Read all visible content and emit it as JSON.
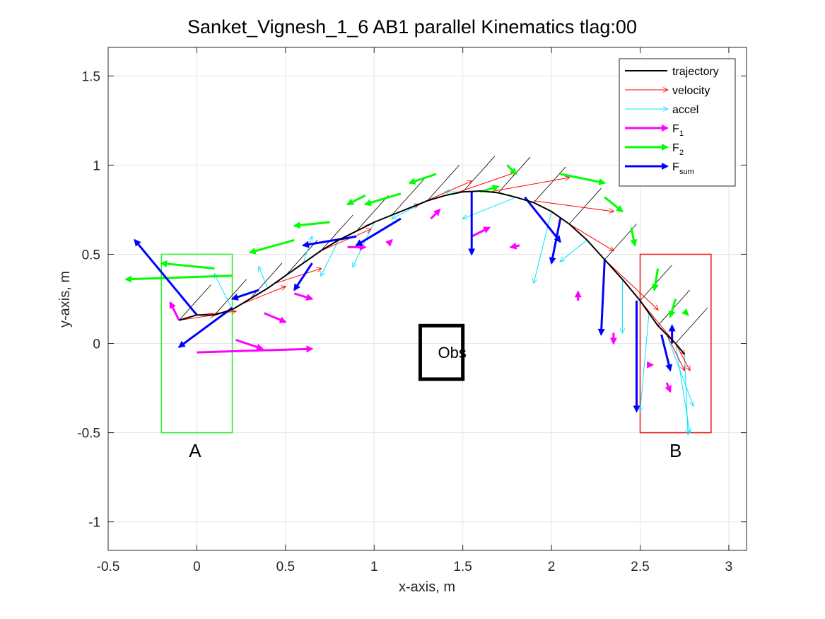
{
  "chart_data": {
    "type": "line",
    "title": "Sanket_Vignesh_1_6    AB1    parallel    Kinematics tlag:00",
    "xlabel": "x-axis, m",
    "ylabel": "y-axis, m",
    "xlim": [
      -0.5,
      3.1
    ],
    "ylim": [
      -1.16,
      1.66
    ],
    "xticks": [
      -0.5,
      0,
      0.5,
      1,
      1.5,
      2,
      2.5,
      3
    ],
    "yticks": [
      -1,
      -0.5,
      0,
      0.5,
      1,
      1.5
    ],
    "grid": true,
    "legend_position": "top-right",
    "legend": [
      {
        "label": "trajectory",
        "sub": "",
        "color": "#000000",
        "kind": "line"
      },
      {
        "label": "velocity",
        "sub": "",
        "color": "#ff0000",
        "kind": "thin-arrow"
      },
      {
        "label": "accel",
        "sub": "",
        "color": "#00e5ff",
        "kind": "thin-arrow"
      },
      {
        "label": "F",
        "sub": "1",
        "color": "#ff00ff",
        "kind": "thick-arrow"
      },
      {
        "label": "F",
        "sub": "2",
        "color": "#00ff00",
        "kind": "thick-arrow"
      },
      {
        "label": "F",
        "sub": "sum",
        "color": "#0000ff",
        "kind": "thick-arrow"
      }
    ],
    "colors": {
      "trajectory": "#000000",
      "velocity": "#ff0000",
      "accel": "#00e5ff",
      "F1": "#ff00ff",
      "F2": "#00ff00",
      "Fsum": "#0000ff",
      "regionA": "#33ee33",
      "regionB": "#ee2222",
      "obstacle": "#000000"
    },
    "regions": [
      {
        "label": "A",
        "x": [
          -0.2,
          0.2
        ],
        "y": [
          -0.5,
          0.5
        ],
        "color": "#33ee33",
        "label_at": [
          -0.01,
          -0.6
        ]
      },
      {
        "label": "B",
        "x": [
          2.5,
          2.9
        ],
        "y": [
          -0.5,
          0.5
        ],
        "color": "#ee2222",
        "label_at": [
          2.7,
          -0.6
        ]
      }
    ],
    "obstacle": {
      "label": "Obs",
      "x": [
        1.26,
        1.5
      ],
      "y": [
        -0.2,
        0.1
      ],
      "label_at": [
        1.36,
        -0.05
      ]
    },
    "trajectory": [
      [
        -0.1,
        0.13
      ],
      [
        0.0,
        0.16
      ],
      [
        0.1,
        0.16
      ],
      [
        0.2,
        0.19
      ],
      [
        0.3,
        0.25
      ],
      [
        0.4,
        0.31
      ],
      [
        0.5,
        0.38
      ],
      [
        0.6,
        0.45
      ],
      [
        0.7,
        0.52
      ],
      [
        0.8,
        0.58
      ],
      [
        0.9,
        0.63
      ],
      [
        1.0,
        0.68
      ],
      [
        1.1,
        0.72
      ],
      [
        1.2,
        0.76
      ],
      [
        1.3,
        0.8
      ],
      [
        1.4,
        0.83
      ],
      [
        1.5,
        0.85
      ],
      [
        1.6,
        0.855
      ],
      [
        1.7,
        0.845
      ],
      [
        1.8,
        0.82
      ],
      [
        1.9,
        0.79
      ],
      [
        2.0,
        0.74
      ],
      [
        2.1,
        0.67
      ],
      [
        2.2,
        0.58
      ],
      [
        2.3,
        0.47
      ],
      [
        2.4,
        0.36
      ],
      [
        2.5,
        0.24
      ],
      [
        2.55,
        0.17
      ],
      [
        2.6,
        0.1
      ],
      [
        2.65,
        0.05
      ],
      [
        2.7,
        0.0
      ],
      [
        2.75,
        -0.06
      ]
    ],
    "velocity": [
      [
        -0.1,
        0.13,
        0.2,
        0.03
      ],
      [
        0.0,
        0.16,
        0.22,
        0.02
      ],
      [
        0.25,
        0.22,
        0.25,
        0.1
      ],
      [
        0.45,
        0.34,
        0.25,
        0.08
      ],
      [
        0.7,
        0.52,
        0.28,
        0.12
      ],
      [
        0.95,
        0.66,
        0.3,
        0.12
      ],
      [
        1.2,
        0.76,
        0.35,
        0.15
      ],
      [
        1.45,
        0.84,
        0.35,
        0.12
      ],
      [
        1.65,
        0.85,
        0.45,
        0.08
      ],
      [
        1.9,
        0.8,
        0.45,
        -0.06
      ],
      [
        2.1,
        0.67,
        0.25,
        -0.15
      ],
      [
        2.3,
        0.47,
        0.3,
        -0.28
      ],
      [
        2.5,
        0.24,
        0.25,
        -0.3
      ],
      [
        2.65,
        0.05,
        0.1,
        -0.2
      ],
      [
        2.7,
        0.0,
        0.08,
        -0.15
      ]
    ],
    "accel": [
      [
        0.2,
        0.19,
        -0.1,
        0.2
      ],
      [
        0.4,
        0.31,
        -0.05,
        0.12
      ],
      [
        0.6,
        0.45,
        0.05,
        0.15
      ],
      [
        0.8,
        0.58,
        -0.1,
        -0.2
      ],
      [
        1.0,
        0.68,
        -0.12,
        -0.25
      ],
      [
        1.3,
        0.8,
        -0.2,
        -0.1
      ],
      [
        1.55,
        0.85,
        -0.15,
        0.0
      ],
      [
        1.8,
        0.82,
        -0.3,
        -0.12
      ],
      [
        2.0,
        0.74,
        -0.1,
        -0.4
      ],
      [
        2.2,
        0.58,
        -0.15,
        -0.12
      ],
      [
        2.4,
        0.36,
        0.0,
        -0.3
      ],
      [
        2.55,
        0.17,
        -0.05,
        -0.55
      ],
      [
        2.65,
        0.05,
        0.15,
        -0.4
      ],
      [
        2.7,
        0.0,
        0.08,
        -0.5
      ],
      [
        2.75,
        -0.06,
        0.02,
        -0.45
      ]
    ],
    "F1": [
      [
        -0.1,
        0.13,
        -0.05,
        0.1
      ],
      [
        0.0,
        -0.05,
        0.65,
        0.02
      ],
      [
        0.22,
        0.02,
        0.15,
        -0.05
      ],
      [
        0.38,
        0.17,
        0.12,
        -0.05
      ],
      [
        0.55,
        0.28,
        0.1,
        -0.03
      ],
      [
        0.85,
        0.54,
        0.1,
        0.0
      ],
      [
        1.08,
        0.56,
        0.02,
        0.02
      ],
      [
        1.32,
        0.7,
        0.05,
        0.05
      ],
      [
        1.55,
        0.6,
        0.1,
        0.05
      ],
      [
        1.82,
        0.55,
        -0.05,
        -0.01
      ],
      [
        2.15,
        0.24,
        0.0,
        0.05
      ],
      [
        2.35,
        0.06,
        0.0,
        -0.06
      ],
      [
        2.55,
        -0.12,
        0.02,
        0.0
      ],
      [
        2.65,
        -0.22,
        0.02,
        -0.05
      ]
    ],
    "F2": [
      [
        0.2,
        0.38,
        -0.6,
        -0.02
      ],
      [
        0.1,
        0.42,
        -0.3,
        0.03
      ],
      [
        0.55,
        0.58,
        -0.25,
        -0.07
      ],
      [
        0.75,
        0.68,
        -0.2,
        -0.02
      ],
      [
        0.95,
        0.83,
        -0.1,
        -0.05
      ],
      [
        1.15,
        0.84,
        -0.2,
        -0.06
      ],
      [
        1.35,
        0.95,
        -0.15,
        -0.05
      ],
      [
        1.6,
        0.85,
        0.1,
        0.03
      ],
      [
        1.75,
        1.0,
        0.05,
        -0.05
      ],
      [
        2.05,
        0.95,
        0.25,
        -0.05
      ],
      [
        2.3,
        0.82,
        0.1,
        -0.08
      ],
      [
        2.45,
        0.65,
        0.02,
        -0.1
      ],
      [
        2.6,
        0.42,
        -0.02,
        -0.12
      ],
      [
        2.7,
        0.25,
        -0.03,
        -0.1
      ],
      [
        2.75,
        0.18,
        0.02,
        -0.02
      ]
    ],
    "F3": [
      [
        0.0,
        0.16,
        -0.35,
        0.42
      ],
      [
        0.2,
        0.2,
        -0.3,
        -0.22
      ],
      [
        0.35,
        0.3,
        -0.15,
        -0.05
      ],
      [
        0.65,
        0.45,
        -0.1,
        -0.15
      ],
      [
        0.9,
        0.6,
        -0.3,
        -0.05
      ],
      [
        1.15,
        0.7,
        -0.25,
        -0.15
      ],
      [
        1.55,
        0.85,
        0.0,
        -0.35
      ],
      [
        1.85,
        0.82,
        0.2,
        -0.25
      ],
      [
        2.05,
        0.7,
        -0.05,
        -0.25
      ],
      [
        2.3,
        0.47,
        -0.02,
        -0.42
      ],
      [
        2.48,
        0.24,
        0.0,
        -0.62
      ],
      [
        2.62,
        0.05,
        0.05,
        -0.2
      ],
      [
        2.68,
        0.0,
        0.0,
        0.1
      ]
    ]
  }
}
